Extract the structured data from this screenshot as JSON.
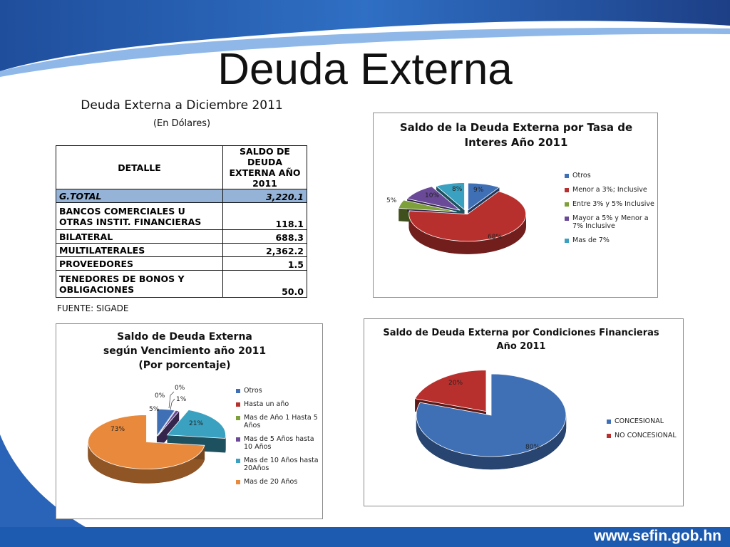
{
  "slide": {
    "title": "Deuda Externa",
    "footer_url": "www.sefin.gob.hn"
  },
  "table": {
    "title": "Deuda Externa a Diciembre 2011",
    "subtitle": "(En Dólares)",
    "headers": [
      "DETALLE",
      "SALDO DE DEUDA EXTERNA AÑO 2011"
    ],
    "rows": [
      {
        "label": "G.TOTAL",
        "value": "3,220.1"
      },
      {
        "label": "BANCOS COMERCIALES U OTRAS INSTIT. FINANCIERAS",
        "value": "118.1"
      },
      {
        "label": "BILATERAL",
        "value": "688.3"
      },
      {
        "label": "MULTILATERALES",
        "value": "2,362.2"
      },
      {
        "label": "PROVEEDORES",
        "value": "1.5"
      },
      {
        "label": "TENEDORES DE BONOS Y OBLIGACIONES",
        "value": "50.0"
      }
    ],
    "source": "FUENTE: SIGADE"
  },
  "chart_data": [
    {
      "type": "pie",
      "title": "Saldo de la Deuda Externa por Tasa de Interes Año 2011",
      "categories": [
        "Otros",
        "Menor a 3%; Inclusive",
        "Entre 3% y 5% Inclusive",
        "Mayor a 5% y Menor a 7% Inclusive",
        "Mas de 7%"
      ],
      "values": [
        9,
        68,
        5,
        10,
        8
      ],
      "labels": [
        "9%",
        "68%",
        "5%",
        "10%",
        "8%"
      ],
      "colors": [
        "#3f6fb5",
        "#b8302d",
        "#7ea03a",
        "#6a4a98",
        "#3aa1c0"
      ],
      "legend": "right"
    },
    {
      "type": "pie",
      "title": "Saldo de Deuda Externa según Vencimiento año 2011 (Por porcentaje)",
      "categories": [
        "Otros",
        "Hasta un año",
        "Mas de Año 1 Hasta 5 Años",
        "Mas de 5 Años hasta 10 Años",
        "Mas de 10 Años hasta 20Años",
        "Mas de 20 Años"
      ],
      "values": [
        5,
        0,
        0,
        1,
        21,
        73
      ],
      "labels": [
        "5%",
        "0%",
        "0%",
        "1%",
        "21%",
        "73%"
      ],
      "colors": [
        "#3f6fb5",
        "#b8302d",
        "#7ea03a",
        "#6a4a98",
        "#3aa1c0",
        "#e8893c"
      ],
      "legend": "right"
    },
    {
      "type": "pie",
      "title": "Saldo de Deuda Externa por Condiciones Financieras Año 2011",
      "categories": [
        "CONCESIONAL",
        "NO CONCESIONAL"
      ],
      "values": [
        80,
        20
      ],
      "labels": [
        "80%",
        "20%"
      ],
      "colors": [
        "#3f6fb5",
        "#b8302d"
      ],
      "legend": "right"
    }
  ]
}
